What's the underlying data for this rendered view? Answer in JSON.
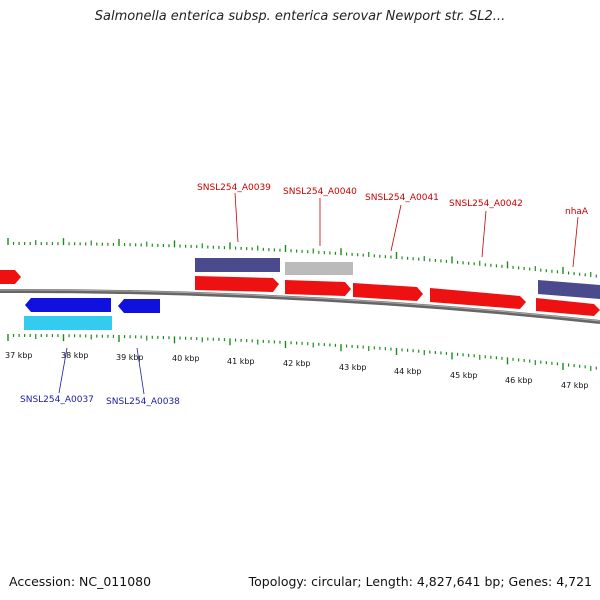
{
  "title": "Salmonella enterica subsp. enterica serovar Newport str. SL2...",
  "footer": {
    "accession": "Accession: NC_011080",
    "summary": "Topology: circular; Length: 4,827,641 bp; Genes: 4,721"
  },
  "colors": {
    "forward_cds": "#ee1111",
    "reverse_cds": "#1111dd",
    "forward_other": "#4a4a8c",
    "reverse_other": "#33ccee",
    "pseudo": "#bbbbbb",
    "ticks": "#1a8a1a",
    "backbone": "#777777"
  },
  "scale_labels": [
    "37 kbp",
    "38 kbp",
    "39 kbp",
    "40 kbp",
    "41 kbp",
    "42 kbp",
    "43 kbp",
    "44 kbp",
    "45 kbp",
    "46 kbp",
    "47 kbp"
  ],
  "top_gene_labels": [
    "SNSL254_A0039",
    "SNSL254_A0040",
    "SNSL254_A0041",
    "SNSL254_A0042",
    "nhaA"
  ],
  "bottom_gene_labels": [
    "SNSL254_A0037",
    "SNSL254_A0038"
  ]
}
